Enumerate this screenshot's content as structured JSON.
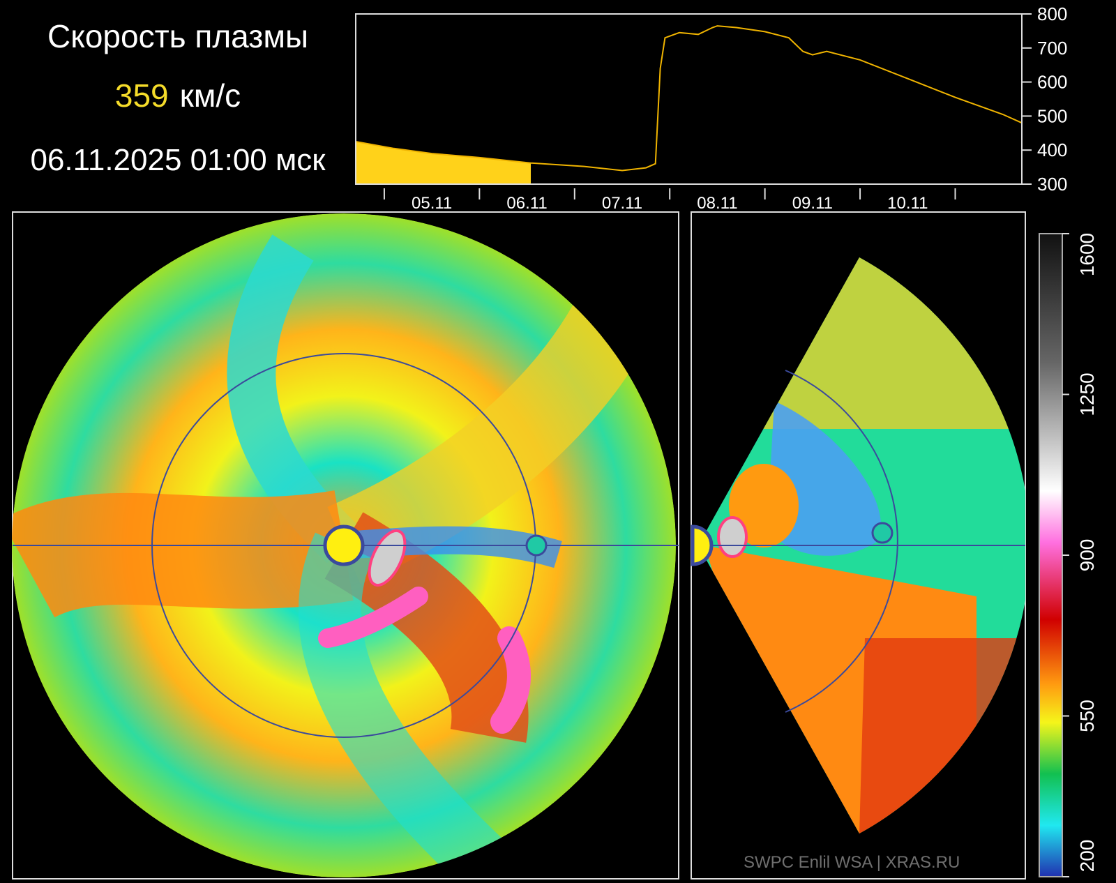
{
  "header": {
    "title": "Скорость плазмы",
    "speed_value": "359",
    "speed_unit": "км/с",
    "datetime": "06.11.2025 01:00 мск"
  },
  "colors": {
    "accent_yellow": "#f5dc2a",
    "timeseries_line": "#f0b400",
    "timeseries_fill": "#ffd21a",
    "orbit": "#3b4a9c",
    "earth": "#20c9a5"
  },
  "chart_data": [
    {
      "type": "line",
      "x_tick_labels": [
        "05.11",
        "06.11",
        "07.11",
        "08.11",
        "09.11",
        "10.11"
      ],
      "y_tick_labels": [
        "800",
        "700",
        "600",
        "500",
        "400",
        "300"
      ],
      "ylim": [
        300,
        800
      ],
      "xlim": [
        4.2,
        11.2
      ],
      "current_time": 6.04,
      "series": [
        {
          "x": [
            4.2,
            4.6,
            5.0,
            5.5,
            6.04,
            6.6,
            7.0,
            7.25,
            7.35,
            7.4,
            7.45,
            7.6,
            7.8,
            7.95,
            8.0,
            8.2,
            8.5,
            8.75,
            8.9,
            9.0,
            9.15,
            9.5,
            10.0,
            10.5,
            11.0,
            11.2
          ],
          "y": [
            425,
            405,
            390,
            378,
            362,
            352,
            340,
            348,
            360,
            640,
            730,
            745,
            740,
            760,
            765,
            760,
            748,
            730,
            690,
            680,
            690,
            665,
            610,
            555,
            505,
            480
          ]
        }
      ]
    },
    {
      "type": "heatmap",
      "colorbar_ticks": [
        "1600",
        "1250",
        "900",
        "550",
        "200"
      ],
      "colorbar_range": [
        200,
        1600
      ]
    }
  ],
  "footer": {
    "watermark": "SWPC Enlil WSA  |  XRAS.RU"
  }
}
